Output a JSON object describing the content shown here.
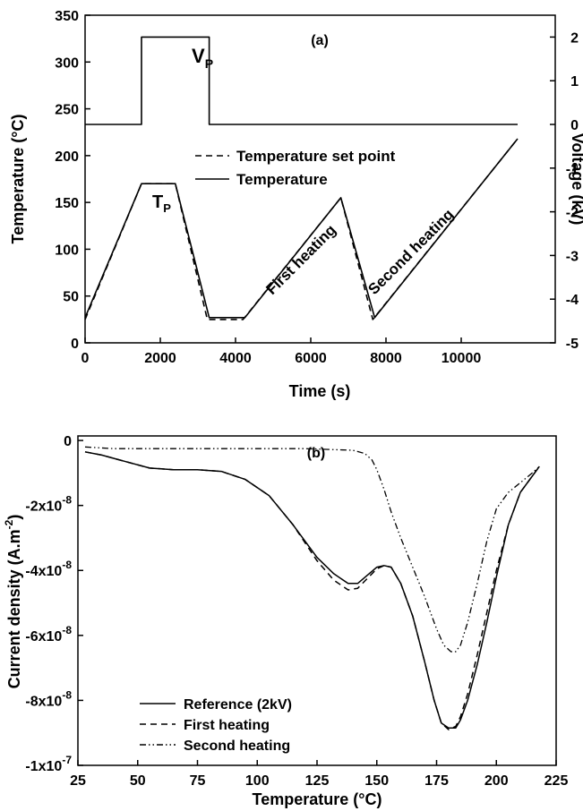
{
  "chart_data": [
    {
      "type": "line",
      "panel_label": "(a)",
      "xlabel": "Time (s)",
      "ylabel": "Temperature (°C)",
      "y2label": "Voltage (kV)",
      "xlim": [
        0,
        12500
      ],
      "ylim": [
        0,
        350
      ],
      "y2lim": [
        -5,
        2.5
      ],
      "xticks": [
        0,
        2000,
        4000,
        6000,
        8000,
        10000
      ],
      "xtick_labels": [
        "0",
        "2000",
        "4000",
        "6000",
        "8000",
        "10000"
      ],
      "yticks": [
        0,
        50,
        100,
        150,
        200,
        250,
        300,
        350
      ],
      "ytick_labels": [
        "0",
        "50",
        "100",
        "150",
        "200",
        "250",
        "300",
        "350"
      ],
      "y2ticks": [
        2,
        1,
        0,
        -1,
        -2,
        -3,
        -4,
        -5
      ],
      "y2tick_labels": [
        "2",
        "1",
        "0",
        "-1",
        "-2",
        "-3",
        "-4",
        "-5"
      ],
      "legend": {
        "placement": "center",
        "entries": [
          "Temperature set point",
          "Temperature"
        ]
      },
      "annotations": [
        {
          "text": "V",
          "sub": "P"
        },
        {
          "text": "T",
          "sub": "P"
        },
        {
          "text": "First heating"
        },
        {
          "text": "Second heating"
        }
      ],
      "series": [
        {
          "name": "Temperature set point",
          "axis": "left",
          "style": "dashed",
          "x": [
            0,
            1500,
            2400,
            3250,
            4200,
            6800,
            7650,
            11500
          ],
          "y": [
            25,
            170,
            170,
            25,
            25,
            155,
            25,
            218
          ]
        },
        {
          "name": "Temperature",
          "axis": "left",
          "style": "solid",
          "x": [
            0,
            1500,
            2400,
            3300,
            4250,
            6800,
            7700,
            11500
          ],
          "y": [
            27,
            170,
            170,
            27,
            27,
            155,
            27,
            218
          ]
        },
        {
          "name": "",
          "axis": "right",
          "style": "solid",
          "x": [
            0,
            1500,
            1500,
            3300,
            3300,
            11500
          ],
          "y": [
            0,
            0,
            2,
            2,
            0,
            0
          ]
        }
      ]
    },
    {
      "type": "line",
      "panel_label": "(b)",
      "xlabel": "Temperature (°C)",
      "ylabel": "Current density (A.m",
      "ylabel_sup": "-2",
      "ylabel_tail": ")",
      "xlim": [
        25,
        225
      ],
      "ylim": [
        -1e-07,
        1.4e-09
      ],
      "xticks": [
        25,
        50,
        75,
        100,
        125,
        150,
        175,
        200,
        225
      ],
      "xtick_labels": [
        "25",
        "50",
        "75",
        "100",
        "125",
        "150",
        "175",
        "200",
        "225"
      ],
      "yticks": [
        0,
        -2e-08,
        -4e-08,
        -6e-08,
        -8e-08,
        -1e-07
      ],
      "ytick_labels": [
        {
          "base": "0",
          "exp": ""
        },
        {
          "base": "-2x10",
          "exp": "-8"
        },
        {
          "base": "-4x10",
          "exp": "-8"
        },
        {
          "base": "-6x10",
          "exp": "-8"
        },
        {
          "base": "-8x10",
          "exp": "-8"
        },
        {
          "base": "-1x10",
          "exp": "-7"
        }
      ],
      "legend": {
        "placement": "bottom-left",
        "entries": [
          "Reference (2kV)",
          "First heating",
          "Second heating"
        ]
      },
      "series": [
        {
          "name": "Reference (2kV)",
          "style": "solid",
          "x": [
            28,
            35,
            45,
            55,
            65,
            75,
            85,
            95,
            105,
            115,
            125,
            132,
            138,
            142,
            146,
            150,
            153,
            156,
            160,
            165,
            170,
            174,
            177,
            180,
            183,
            185,
            188,
            192,
            196,
            200,
            205,
            210,
            215,
            218
          ],
          "y": [
            -3.5e-09,
            -4.5e-09,
            -6.5e-09,
            -8.5e-09,
            -9e-09,
            -9e-09,
            -9.5e-09,
            -1.2e-08,
            -1.7e-08,
            -2.6e-08,
            -3.6e-08,
            -4.1e-08,
            -4.4e-08,
            -4.4e-08,
            -4.15e-08,
            -3.9e-08,
            -3.85e-08,
            -3.9e-08,
            -4.4e-08,
            -5.4e-08,
            -6.8e-08,
            -8e-08,
            -8.7e-08,
            -8.85e-08,
            -8.85e-08,
            -8.6e-08,
            -8e-08,
            -6.9e-08,
            -5.6e-08,
            -4.2e-08,
            -2.6e-08,
            -1.6e-08,
            -1.1e-08,
            -8e-09
          ]
        },
        {
          "name": "First heating",
          "style": "dashed",
          "x": [
            28,
            35,
            45,
            55,
            65,
            75,
            85,
            95,
            105,
            115,
            125,
            132,
            138,
            142,
            146,
            150,
            153,
            156,
            160,
            165,
            170,
            174,
            177,
            180,
            183,
            185,
            188,
            192,
            196,
            200,
            205,
            210,
            215,
            218
          ],
          "y": [
            -3.5e-09,
            -4.5e-09,
            -6.5e-09,
            -8.5e-09,
            -9e-09,
            -9e-09,
            -9.5e-09,
            -1.2e-08,
            -1.7e-08,
            -2.6e-08,
            -3.7e-08,
            -4.3e-08,
            -4.6e-08,
            -4.55e-08,
            -4.25e-08,
            -3.95e-08,
            -3.85e-08,
            -3.9e-08,
            -4.4e-08,
            -5.4e-08,
            -6.8e-08,
            -8e-08,
            -8.7e-08,
            -8.9e-08,
            -8.8e-08,
            -8.5e-08,
            -7.8e-08,
            -6.6e-08,
            -5.3e-08,
            -4e-08,
            -2.6e-08,
            -1.6e-08,
            -1.1e-08,
            -8e-09
          ]
        },
        {
          "name": "Second heating",
          "style": "dash-dot-dot",
          "x": [
            28,
            40,
            60,
            80,
            100,
            120,
            140,
            145,
            148,
            150,
            153,
            156,
            160,
            165,
            170,
            175,
            178,
            181,
            183,
            185,
            188,
            192,
            196,
            200,
            205,
            210,
            215,
            218
          ],
          "y": [
            -2e-09,
            -2.5e-09,
            -2.5e-09,
            -2.5e-09,
            -2.5e-09,
            -2.5e-09,
            -3e-09,
            -4e-09,
            -6e-09,
            -9e-09,
            -1.5e-08,
            -2.2e-08,
            -3e-08,
            -3.9e-08,
            -4.8e-08,
            -5.8e-08,
            -6.3e-08,
            -6.5e-08,
            -6.5e-08,
            -6.3e-08,
            -5.6e-08,
            -4.4e-08,
            -3.1e-08,
            -2.1e-08,
            -1.6e-08,
            -1.3e-08,
            -1e-08,
            -8e-09
          ]
        }
      ]
    }
  ]
}
